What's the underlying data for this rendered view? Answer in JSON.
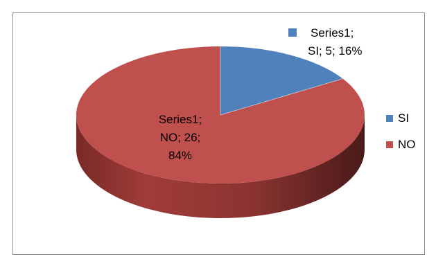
{
  "chart_data": {
    "type": "pie",
    "categories": [
      "SI",
      "NO"
    ],
    "series": [
      {
        "name": "Series1",
        "values": [
          5,
          26
        ]
      }
    ],
    "percentages": [
      "16%",
      "84%"
    ],
    "data_labels": {
      "si": {
        "line1": "Series1;",
        "line2": "SI; 5; 16%"
      },
      "no": {
        "line1": "Series1;",
        "line2": "NO; 26;",
        "line3": "84%"
      }
    },
    "legend": {
      "position": "right",
      "items": [
        {
          "label": "SI",
          "color": "#4f81bd"
        },
        {
          "label": "NO",
          "color": "#c0504d"
        }
      ]
    },
    "style": "3d",
    "colors": {
      "si": "#4f81bd",
      "no": "#c0504d"
    }
  }
}
